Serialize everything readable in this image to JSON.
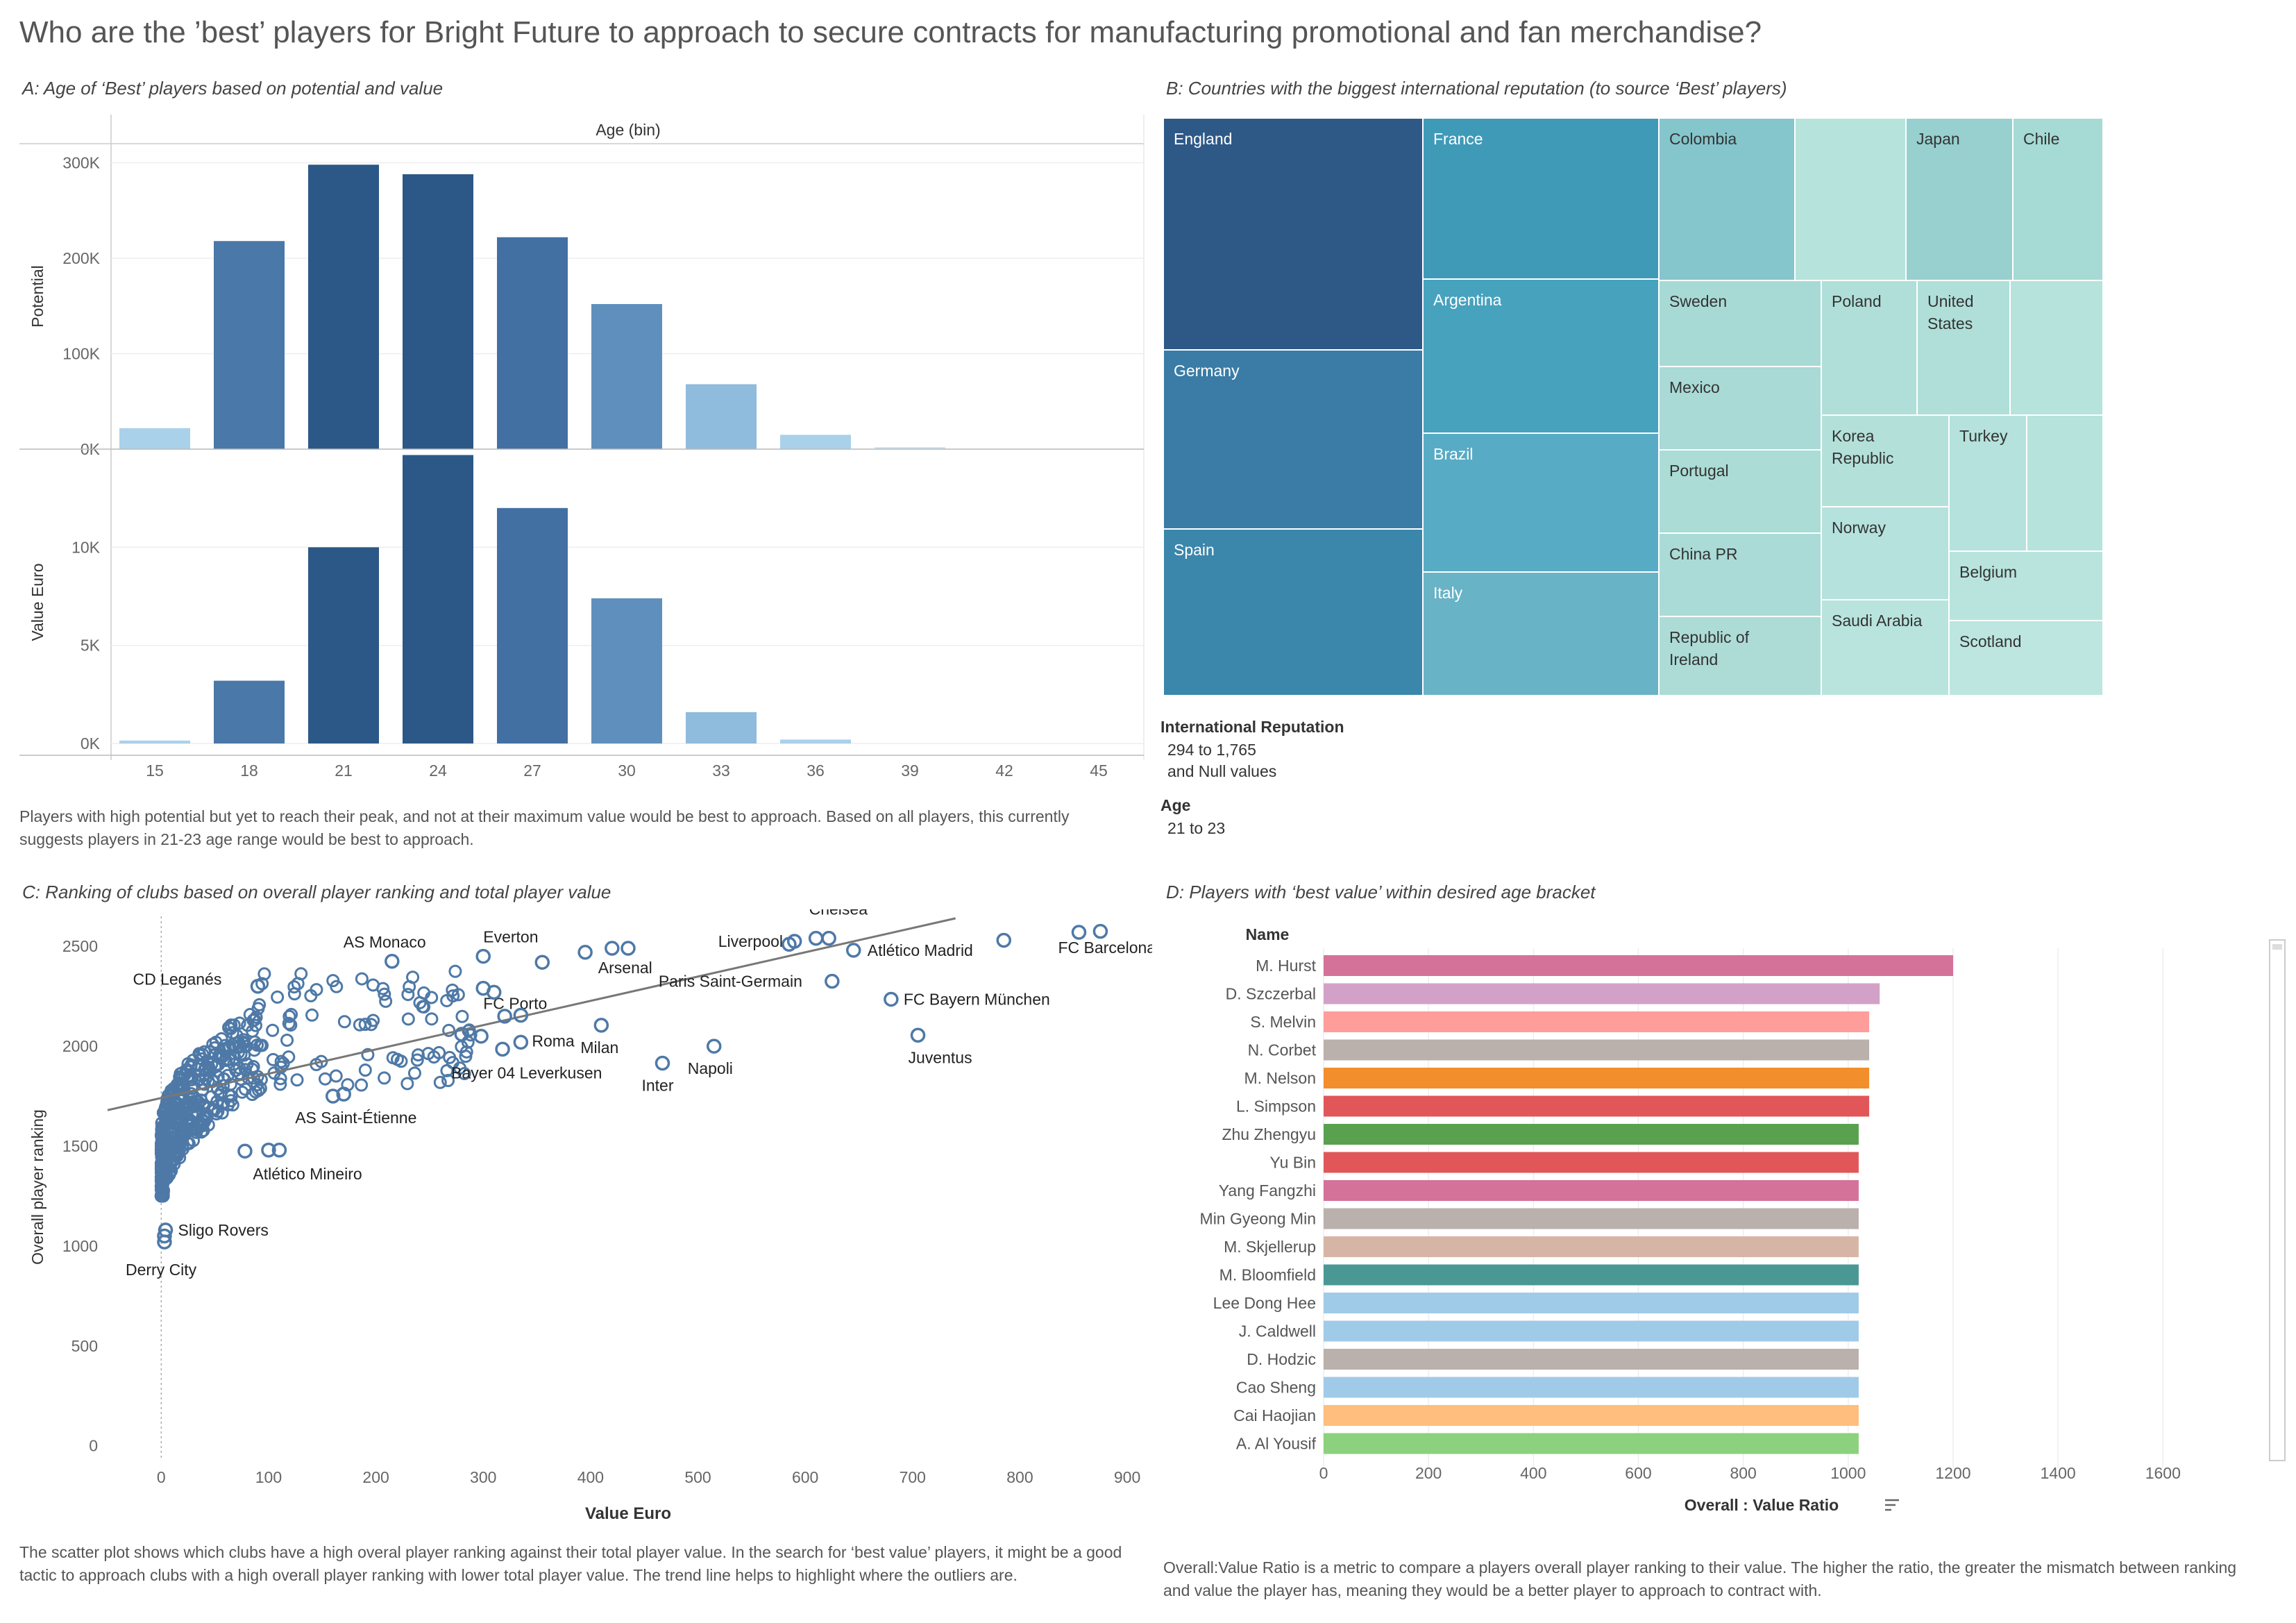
{
  "dashboard": {
    "title": "Who are the ’best’ players for Bright Future to approach to secure contracts for manufacturing promotional and fan merchandise?"
  },
  "panel_a": {
    "title": "A: Age of ‘Best’ players based on potential and value",
    "note": "Players with high potential but yet to reach their peak, and not at their maximum value would be best to approach. Based on all players, this currently suggests players in 21-23 age range would be best to approach."
  },
  "panel_b": {
    "title": "B: Countries with the biggest international reputation (to source ‘Best’ players)",
    "legend": {
      "title1": "International Reputation",
      "range1": "294 to 1,765",
      "range1b": "and Null values",
      "title2": "Age",
      "range2": "21 to 23"
    }
  },
  "panel_c": {
    "title": "C: Ranking of clubs based on overall player ranking and total player value",
    "note": "The scatter plot shows which clubs have a high overal player ranking against their total player value. In the search for ‘best value’ players, it might be a good tactic to approach clubs with a high overall player ranking with lower total player value. The trend line helps to highlight where the outliers are."
  },
  "panel_d": {
    "title": "D: Players with ‘best value’ within desired age bracket",
    "note": "Overall:Value Ratio is a metric to compare a players overall player ranking to their value. The higher the ratio, the greater the mismatch between ranking and value the player has, meaning they would be a better player to approach to contract with."
  },
  "chart_data": [
    {
      "type": "bar",
      "id": "age_potential",
      "xlabel": "Age (bin)",
      "ylabel": "Potential",
      "categories": [
        "15",
        "18",
        "21",
        "24",
        "27",
        "30",
        "33",
        "36",
        "39",
        "42",
        "45"
      ],
      "values": [
        22000,
        218000,
        298000,
        288000,
        222000,
        152000,
        68000,
        15000,
        2000,
        0,
        0
      ],
      "ylim": [
        0,
        320000
      ],
      "yticks": [
        "0K",
        "100K",
        "200K",
        "300K"
      ],
      "colors": [
        "#a9d1ea",
        "#4a78a8",
        "#2b5886",
        "#2b5886",
        "#4270a3",
        "#5f90bd",
        "#8fbbdc",
        "#a9d1ea",
        "#c8e0f0",
        "#ffffff",
        "#ffffff"
      ]
    },
    {
      "type": "bar",
      "id": "age_value",
      "xlabel": "",
      "ylabel": "Value Euro",
      "categories": [
        "15",
        "18",
        "21",
        "24",
        "27",
        "30",
        "33",
        "36",
        "39",
        "42",
        "45"
      ],
      "values": [
        150,
        3200,
        10000,
        14700,
        12000,
        7400,
        1600,
        200,
        0,
        0,
        0
      ],
      "ylim": [
        -600,
        15000
      ],
      "yticks": [
        "0K",
        "5K",
        "10K"
      ],
      "colors": [
        "#a9d1ea",
        "#4a78a8",
        "#2b5886",
        "#2b5886",
        "#4270a3",
        "#5f90bd",
        "#8fbbdc",
        "#a9d1ea",
        "#c8e0f0",
        "#ffffff",
        "#ffffff"
      ]
    },
    {
      "type": "heatmap",
      "id": "country_treemap",
      "series": [
        {
          "name": "England",
          "value": 1765,
          "color": "#2e5987"
        },
        {
          "name": "Germany",
          "value": 1400,
          "color": "#3a7ca5"
        },
        {
          "name": "Spain",
          "value": 1300,
          "color": "#3b86ab"
        },
        {
          "name": "France",
          "value": 1250,
          "color": "#3f9ab8"
        },
        {
          "name": "Argentina",
          "value": 1150,
          "color": "#46a2bd"
        },
        {
          "name": "Brazil",
          "value": 1100,
          "color": "#58abc4"
        },
        {
          "name": "Italy",
          "value": 950,
          "color": "#68b3c6"
        },
        {
          "name": "Colombia",
          "value": 600,
          "color": "#85c5cc"
        },
        {
          "name": "Japan",
          "value": 500,
          "color": "#97d0cf"
        },
        {
          "name": "Chile",
          "value": 420,
          "color": "#a6dad4"
        },
        {
          "name": "Sweden",
          "value": 500,
          "color": "#a8dad5"
        },
        {
          "name": "Mexico",
          "value": 480,
          "color": "#a9dad6"
        },
        {
          "name": "Portugal",
          "value": 470,
          "color": "#abdcd6"
        },
        {
          "name": "China PR",
          "value": 460,
          "color": "#aadbd6"
        },
        {
          "name": "Republic of Ireland",
          "value": 450,
          "color": "#addcd7"
        },
        {
          "name": "Poland",
          "value": 400,
          "color": "#b0dfd9"
        },
        {
          "name": "United States",
          "value": 400,
          "color": "#b0dfd9"
        },
        {
          "name": "Korea Republic",
          "value": 380,
          "color": "#b3e1da"
        },
        {
          "name": "Turkey",
          "value": 370,
          "color": "#b5e2dc"
        },
        {
          "name": "Norway",
          "value": 360,
          "color": "#b5e2dc"
        },
        {
          "name": "Saudi Arabia",
          "value": 350,
          "color": "#b8e4dd"
        },
        {
          "name": "Belgium",
          "value": 340,
          "color": "#b8e4dd"
        },
        {
          "name": "Scotland",
          "value": 294,
          "color": "#bce6df"
        }
      ]
    },
    {
      "type": "scatter",
      "id": "club_scatter",
      "xlabel": "Value Euro",
      "ylabel": "Overall player ranking",
      "xlim": [
        -50,
        920
      ],
      "ylim": [
        -60,
        2650
      ],
      "xticks": [
        0,
        100,
        200,
        300,
        400,
        500,
        600,
        700,
        800,
        900
      ],
      "yticks": [
        0,
        500,
        1000,
        1500,
        2000,
        2500
      ],
      "trend": [
        [
          -50,
          1680
        ],
        [
          740,
          2640
        ]
      ],
      "labeled_points": [
        {
          "x": 855,
          "y": 2570,
          "label": "FC Barcelona"
        },
        {
          "x": 875,
          "y": 2575,
          "label": ""
        },
        {
          "x": 785,
          "y": 2530,
          "label": ""
        },
        {
          "x": 610,
          "y": 2540,
          "label": "Chelsea"
        },
        {
          "x": 622,
          "y": 2540,
          "label": ""
        },
        {
          "x": 645,
          "y": 2480,
          "label": "Atlético Madrid"
        },
        {
          "x": 590,
          "y": 2525,
          "label": "Liverpool"
        },
        {
          "x": 585,
          "y": 2510,
          "label": ""
        },
        {
          "x": 625,
          "y": 2325,
          "label": "Paris Saint-Germain"
        },
        {
          "x": 680,
          "y": 2235,
          "label": "FC Bayern München"
        },
        {
          "x": 705,
          "y": 2055,
          "label": "Juventus"
        },
        {
          "x": 515,
          "y": 2000,
          "label": "Napoli"
        },
        {
          "x": 467,
          "y": 1915,
          "label": "Inter"
        },
        {
          "x": 420,
          "y": 2490,
          "label": "Arsenal"
        },
        {
          "x": 435,
          "y": 2490,
          "label": ""
        },
        {
          "x": 395,
          "y": 2470,
          "label": ""
        },
        {
          "x": 300,
          "y": 2450,
          "label": "Everton"
        },
        {
          "x": 355,
          "y": 2420,
          "label": ""
        },
        {
          "x": 410,
          "y": 2105,
          "label": "Milan"
        },
        {
          "x": 335,
          "y": 2020,
          "label": "Roma"
        },
        {
          "x": 300,
          "y": 2290,
          "label": "FC Porto"
        },
        {
          "x": 310,
          "y": 2270,
          "label": ""
        },
        {
          "x": 335,
          "y": 2155,
          "label": ""
        },
        {
          "x": 320,
          "y": 2150,
          "label": ""
        },
        {
          "x": 298,
          "y": 2050,
          "label": ""
        },
        {
          "x": 280,
          "y": 2060,
          "label": ""
        },
        {
          "x": 318,
          "y": 1985,
          "label": "Bayer 04 Leverkusen"
        },
        {
          "x": 215,
          "y": 2425,
          "label": "AS Monaco"
        },
        {
          "x": 90,
          "y": 2300,
          "label": "CD Leganés"
        },
        {
          "x": 170,
          "y": 1760,
          "label": "AS Saint-Étienne"
        },
        {
          "x": 160,
          "y": 1750,
          "label": ""
        },
        {
          "x": 110,
          "y": 1480,
          "label": "Atlético Mineiro"
        },
        {
          "x": 100,
          "y": 1480,
          "label": ""
        },
        {
          "x": 78,
          "y": 1475,
          "label": ""
        },
        {
          "x": 4,
          "y": 1080,
          "label": "Sligo Rovers"
        },
        {
          "x": 3,
          "y": 1020,
          "label": "Derry City"
        },
        {
          "x": 3,
          "y": 1050,
          "label": ""
        }
      ]
    },
    {
      "type": "bar",
      "id": "player_ratio",
      "xlabel": "Overall : Value Ratio",
      "ylabel": "Name",
      "xlim": [
        0,
        1720
      ],
      "xticks": [
        0,
        200,
        400,
        600,
        800,
        1000,
        1200,
        1400,
        1600
      ],
      "categories": [
        "M. Hurst",
        "D. Szczerbal",
        "S. Melvin",
        "N. Corbet",
        "M. Nelson",
        "L. Simpson",
        "Zhu Zhengyu",
        "Yu Bin",
        "Yang Fangzhi",
        "Min Gyeong Min",
        "M. Skjellerup",
        "M. Bloomfield",
        "Lee Dong Hee",
        "J. Caldwell",
        "D. Hodzic",
        "Cao Sheng",
        "Cai Haojian",
        "A. Al Yousif"
      ],
      "values": [
        1200,
        1060,
        1040,
        1040,
        1040,
        1040,
        1020,
        1020,
        1020,
        1020,
        1020,
        1020,
        1020,
        1020,
        1020,
        1020,
        1020,
        1020
      ],
      "colors": [
        "#d4729a",
        "#d3a1c7",
        "#ff9d9a",
        "#bab0ac",
        "#f28e2b",
        "#e15759",
        "#59a14f",
        "#e15759",
        "#d4729a",
        "#bab0ac",
        "#d7b5a6",
        "#499894",
        "#a0cbe8",
        "#a0cbe8",
        "#bab0ac",
        "#a0cbe8",
        "#ffbe7d",
        "#8cd17d"
      ]
    }
  ]
}
